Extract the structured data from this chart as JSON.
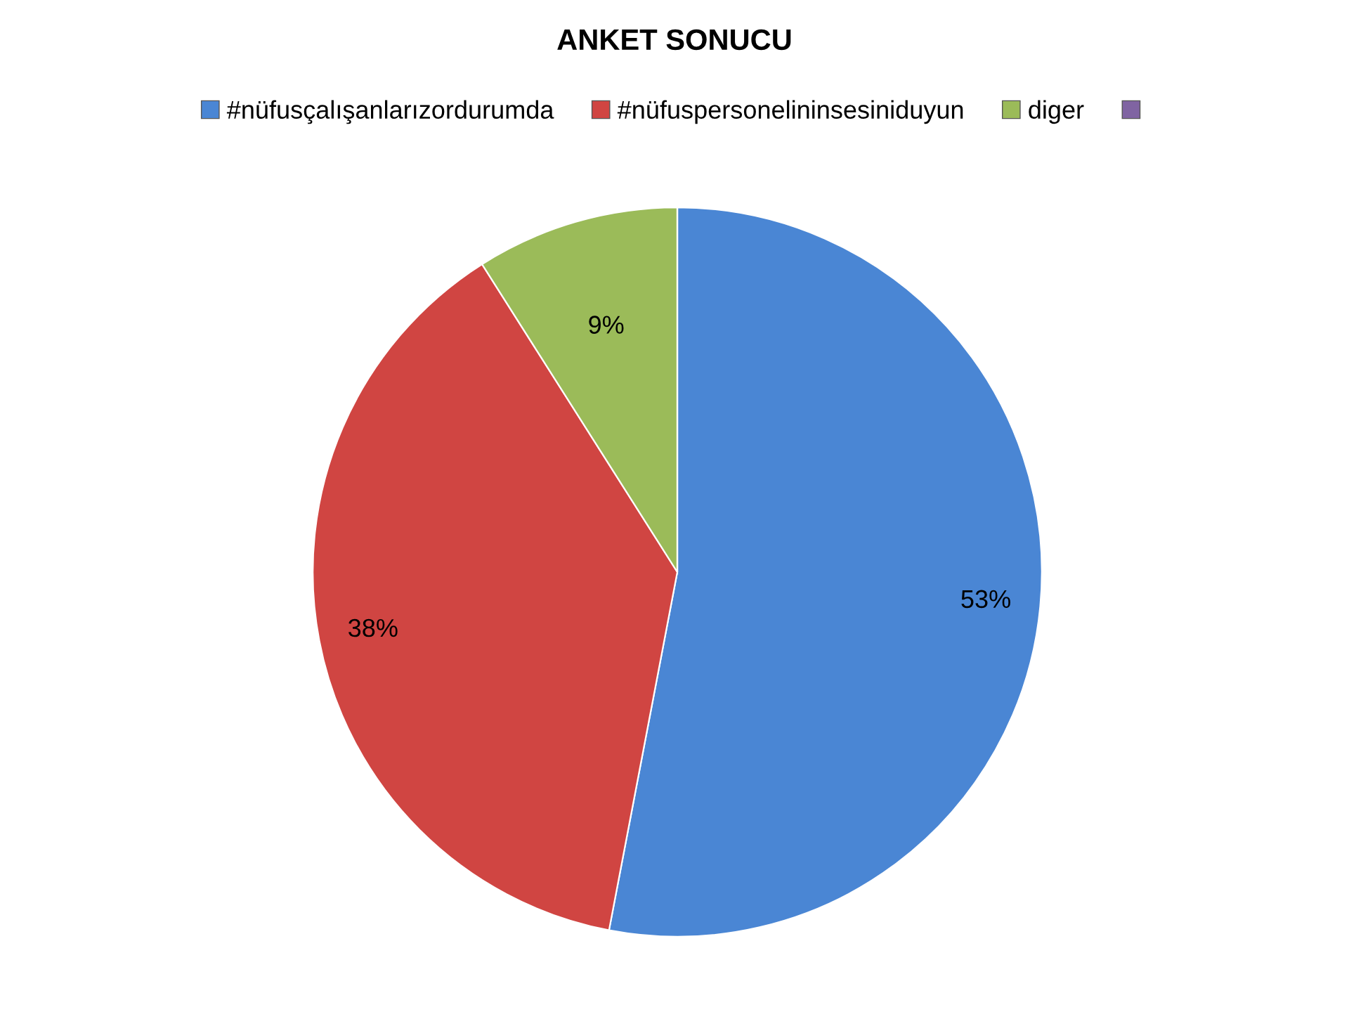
{
  "chart_data": {
    "type": "pie",
    "title": "ANKET SONUCU",
    "categories": [
      "#nüfusçalışanlarızordurumda",
      "#nüfuspersonelininsesiniduyun",
      "diger",
      null
    ],
    "values": [
      53,
      38,
      9,
      0
    ],
    "colors": [
      "#4a86d4",
      "#d04542",
      "#9bbb59",
      "#8064a2"
    ],
    "value_labels": [
      "53%",
      "38%",
      "9%",
      null
    ],
    "legend": "top"
  }
}
